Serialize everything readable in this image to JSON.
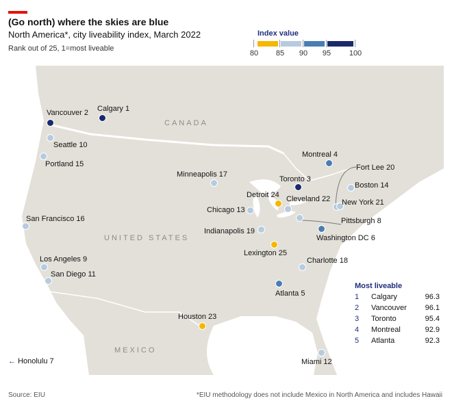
{
  "title": "(Go north) where the skies are blue",
  "subtitle": "North America*, city liveability index, March 2022",
  "rank_note": "Rank out of 25, 1=most liveable",
  "legend": {
    "title": "Index value",
    "ticks": [
      "80",
      "85",
      "90",
      "95",
      "100"
    ],
    "bins": [
      {
        "range": "80-85",
        "color": "#f5b700"
      },
      {
        "range": "85-90",
        "color": "#b6cbe0"
      },
      {
        "range": "90-95",
        "color": "#4a7db5"
      },
      {
        "range": "95-100",
        "color": "#1a2a6c"
      }
    ]
  },
  "country_labels": {
    "canada": "CANADA",
    "usa": "UNITED STATES",
    "mexico": "MEXICO"
  },
  "cities": [
    {
      "key": "calgary",
      "name": "Calgary",
      "rank": "1",
      "color": "#1a2a6c"
    },
    {
      "key": "vancouver",
      "name": "Vancouver",
      "rank": "2",
      "color": "#1a2a6c"
    },
    {
      "key": "toronto",
      "name": "Toronto",
      "rank": "3",
      "color": "#1a2a6c"
    },
    {
      "key": "montreal",
      "name": "Montreal",
      "rank": "4",
      "color": "#4a7db5"
    },
    {
      "key": "atlanta",
      "name": "Atlanta",
      "rank": "5",
      "color": "#4a7db5"
    },
    {
      "key": "washington",
      "name": "Washington DC",
      "rank": "6",
      "color": "#4a7db5"
    },
    {
      "key": "pittsburgh",
      "name": "Pittsburgh",
      "rank": "8",
      "color": "#b6cbe0"
    },
    {
      "key": "losangeles",
      "name": "Los Angeles",
      "rank": "9",
      "color": "#b6cbe0"
    },
    {
      "key": "seattle",
      "name": "Seattle",
      "rank": "10",
      "color": "#b6cbe0"
    },
    {
      "key": "sandiego",
      "name": "San Diego",
      "rank": "11",
      "color": "#b6cbe0"
    },
    {
      "key": "miami",
      "name": "Miami",
      "rank": "12",
      "color": "#b6cbe0"
    },
    {
      "key": "chicago",
      "name": "Chicago",
      "rank": "13",
      "color": "#b6cbe0"
    },
    {
      "key": "boston",
      "name": "Boston",
      "rank": "14",
      "color": "#b6cbe0"
    },
    {
      "key": "portland",
      "name": "Portland",
      "rank": "15",
      "color": "#b6cbe0"
    },
    {
      "key": "sanfrancisco",
      "name": "San Francisco",
      "rank": "16",
      "color": "#b6cbe0"
    },
    {
      "key": "minneapolis",
      "name": "Minneapolis",
      "rank": "17",
      "color": "#b6cbe0"
    },
    {
      "key": "charlotte",
      "name": "Charlotte",
      "rank": "18",
      "color": "#b6cbe0"
    },
    {
      "key": "indianapolis",
      "name": "Indianapolis",
      "rank": "19",
      "color": "#b6cbe0"
    },
    {
      "key": "fortlee",
      "name": "Fort Lee",
      "rank": "20",
      "color": "#b6cbe0"
    },
    {
      "key": "newyork",
      "name": "New York",
      "rank": "21",
      "color": "#b6cbe0"
    },
    {
      "key": "cleveland",
      "name": "Cleveland",
      "rank": "22",
      "color": "#b6cbe0"
    },
    {
      "key": "houston",
      "name": "Houston",
      "rank": "23",
      "color": "#f5b700"
    },
    {
      "key": "detroit",
      "name": "Detroit",
      "rank": "24",
      "color": "#f5b700"
    },
    {
      "key": "lexington",
      "name": "Lexington",
      "rank": "25",
      "color": "#f5b700"
    }
  ],
  "honolulu": {
    "arrow": "←",
    "name": "Honolulu",
    "rank": "7"
  },
  "most_liveable": {
    "title": "Most liveable",
    "rows": [
      {
        "rank": "1",
        "city": "Calgary",
        "value": "96.3"
      },
      {
        "rank": "2",
        "city": "Vancouver",
        "value": "96.1"
      },
      {
        "rank": "3",
        "city": "Toronto",
        "value": "95.4"
      },
      {
        "rank": "4",
        "city": "Montreal",
        "value": "92.9"
      },
      {
        "rank": "5",
        "city": "Atlanta",
        "value": "92.3"
      }
    ]
  },
  "source": "Source: EIU",
  "footnote": "*EIU methodology does not include Mexico in North America and includes Hawaii"
}
